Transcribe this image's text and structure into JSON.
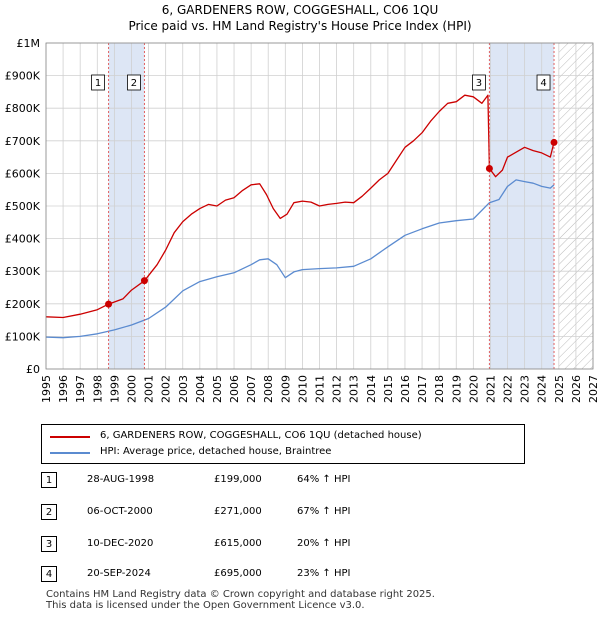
{
  "chart_data": {
    "type": "line",
    "title": "6, GARDENERS ROW, COGGESHALL, CO6 1QU",
    "subtitle": "Price paid vs. HM Land Registry's House Price Index (HPI)",
    "xlim": [
      1995,
      2027
    ],
    "ylim": [
      0,
      1000000
    ],
    "x_ticks": [
      "1995",
      "1996",
      "1997",
      "1998",
      "1999",
      "2000",
      "2001",
      "2002",
      "2003",
      "2004",
      "2005",
      "2006",
      "2007",
      "2008",
      "2009",
      "2010",
      "2011",
      "2012",
      "2013",
      "2014",
      "2015",
      "2016",
      "2017",
      "2018",
      "2019",
      "2020",
      "2021",
      "2022",
      "2023",
      "2024",
      "2025",
      "2026",
      "2027"
    ],
    "y_ticks": [
      {
        "value": 0,
        "label": "£0"
      },
      {
        "value": 100000,
        "label": "£100K"
      },
      {
        "value": 200000,
        "label": "£200K"
      },
      {
        "value": 300000,
        "label": "£300K"
      },
      {
        "value": 400000,
        "label": "£400K"
      },
      {
        "value": 500000,
        "label": "£500K"
      },
      {
        "value": 600000,
        "label": "£600K"
      },
      {
        "value": 700000,
        "label": "£700K"
      },
      {
        "value": 800000,
        "label": "£800K"
      },
      {
        "value": 900000,
        "label": "£900K"
      },
      {
        "value": 1000000,
        "label": "£1M"
      }
    ],
    "grid": true,
    "shaded_spans": [
      [
        1998.66,
        2000.76
      ],
      [
        2020.94,
        2024.72
      ]
    ],
    "hatched_span": [
      2025.0,
      2027
    ],
    "series": [
      {
        "name": "6, GARDENERS ROW, COGGESHALL, CO6 1QU (detached house)",
        "color": "#cc0000",
        "x": [
          1995.0,
          1996.0,
          1997.0,
          1998.0,
          1998.66,
          1999.5,
          2000.0,
          2000.76,
          2001.5,
          2002.0,
          2002.5,
          2003.0,
          2003.5,
          2004.0,
          2004.5,
          2005.0,
          2005.5,
          2006.0,
          2006.5,
          2007.0,
          2007.5,
          2007.9,
          2008.3,
          2008.7,
          2009.1,
          2009.5,
          2010.0,
          2010.5,
          2011.0,
          2011.5,
          2012.0,
          2012.5,
          2013.0,
          2013.5,
          2014.0,
          2014.5,
          2015.0,
          2015.5,
          2016.0,
          2016.5,
          2017.0,
          2017.5,
          2018.0,
          2018.5,
          2019.0,
          2019.5,
          2020.0,
          2020.5,
          2020.85,
          2020.94,
          2021.3,
          2021.7,
          2022.0,
          2022.5,
          2023.0,
          2023.5,
          2024.0,
          2024.5,
          2024.72
        ],
        "y": [
          160000,
          158000,
          168000,
          182000,
          199000,
          215000,
          242000,
          271000,
          320000,
          365000,
          418000,
          452000,
          475000,
          492000,
          505000,
          500000,
          518000,
          525000,
          548000,
          565000,
          568000,
          535000,
          492000,
          462000,
          475000,
          510000,
          515000,
          512000,
          500000,
          505000,
          508000,
          512000,
          510000,
          530000,
          555000,
          580000,
          600000,
          640000,
          680000,
          700000,
          725000,
          760000,
          790000,
          815000,
          820000,
          840000,
          835000,
          815000,
          840000,
          615000,
          590000,
          610000,
          650000,
          665000,
          680000,
          670000,
          663000,
          650000,
          695000
        ]
      },
      {
        "name": "HPI: Average price, detached house, Braintree",
        "color": "#5b8bd0",
        "x": [
          1995.0,
          1996.0,
          1997.0,
          1998.0,
          1999.0,
          2000.0,
          2001.0,
          2002.0,
          2003.0,
          2004.0,
          2005.0,
          2006.0,
          2007.0,
          2007.5,
          2008.0,
          2008.5,
          2009.0,
          2009.5,
          2010.0,
          2011.0,
          2012.0,
          2013.0,
          2014.0,
          2015.0,
          2016.0,
          2017.0,
          2018.0,
          2019.0,
          2020.0,
          2020.94,
          2021.5,
          2022.0,
          2022.5,
          2023.0,
          2023.5,
          2024.0,
          2024.5,
          2024.72
        ],
        "y": [
          98000,
          96000,
          100000,
          108000,
          120000,
          135000,
          155000,
          190000,
          240000,
          268000,
          283000,
          295000,
          320000,
          335000,
          338000,
          320000,
          280000,
          298000,
          305000,
          308000,
          310000,
          315000,
          338000,
          375000,
          410000,
          430000,
          448000,
          455000,
          460000,
          510000,
          520000,
          560000,
          580000,
          575000,
          570000,
          560000,
          555000,
          565000
        ]
      }
    ],
    "sales": [
      {
        "id": "1",
        "x": 1998.66,
        "price": 199000
      },
      {
        "id": "2",
        "x": 2000.76,
        "price": 271000
      },
      {
        "id": "3",
        "x": 2020.94,
        "price": 615000
      },
      {
        "id": "4",
        "x": 2024.72,
        "price": 695000
      }
    ]
  },
  "legend": {
    "house_label": "6, GARDENERS ROW, COGGESHALL, CO6 1QU (detached house)",
    "hpi_label": "HPI: Average price, detached house, Braintree"
  },
  "table": [
    {
      "num": "1",
      "date": "28-AUG-1998",
      "price": "£199,000",
      "hpi": "64% ↑ HPI"
    },
    {
      "num": "2",
      "date": "06-OCT-2000",
      "price": "£271,000",
      "hpi": "67% ↑ HPI"
    },
    {
      "num": "3",
      "date": "10-DEC-2020",
      "price": "£615,000",
      "hpi": "20% ↑ HPI"
    },
    {
      "num": "4",
      "date": "20-SEP-2024",
      "price": "£695,000",
      "hpi": "23% ↑ HPI"
    }
  ],
  "footer": {
    "line1": "Contains HM Land Registry data © Crown copyright and database right 2025.",
    "line2": "This data is licensed under the Open Government Licence v3.0."
  }
}
